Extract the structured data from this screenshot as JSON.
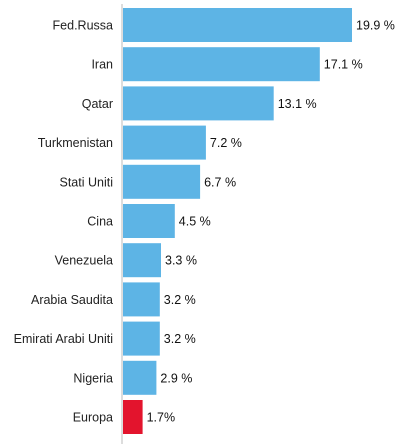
{
  "chart_data": {
    "type": "bar",
    "orientation": "horizontal",
    "title": "",
    "xlabel": "",
    "ylabel": "",
    "categories": [
      "Fed.Russa",
      "Iran",
      "Qatar",
      "Turkmenistan",
      "Stati Uniti",
      "Cina",
      "Venezuela",
      "Arabia Saudita",
      "Emirati Arabi Uniti",
      "Nigeria",
      "Europa"
    ],
    "values": [
      19.9,
      17.1,
      13.1,
      7.2,
      6.7,
      4.5,
      3.3,
      3.2,
      3.2,
      2.9,
      1.7
    ],
    "value_labels": [
      "19.9 %",
      "17.1 %",
      "13.1 %",
      "7.2 %",
      "6.7 %",
      "4.5 %",
      "3.3 %",
      "3.2 %",
      "3.2 %",
      "2.9 %",
      "1.7%"
    ],
    "colors": [
      "#5db4e5",
      "#5db4e5",
      "#5db4e5",
      "#5db4e5",
      "#5db4e5",
      "#5db4e5",
      "#5db4e5",
      "#5db4e5",
      "#5db4e5",
      "#5db4e5",
      "#e3142d"
    ],
    "xlim": [
      0,
      20
    ],
    "grid": false,
    "axis_color": "#bbbbbb"
  }
}
